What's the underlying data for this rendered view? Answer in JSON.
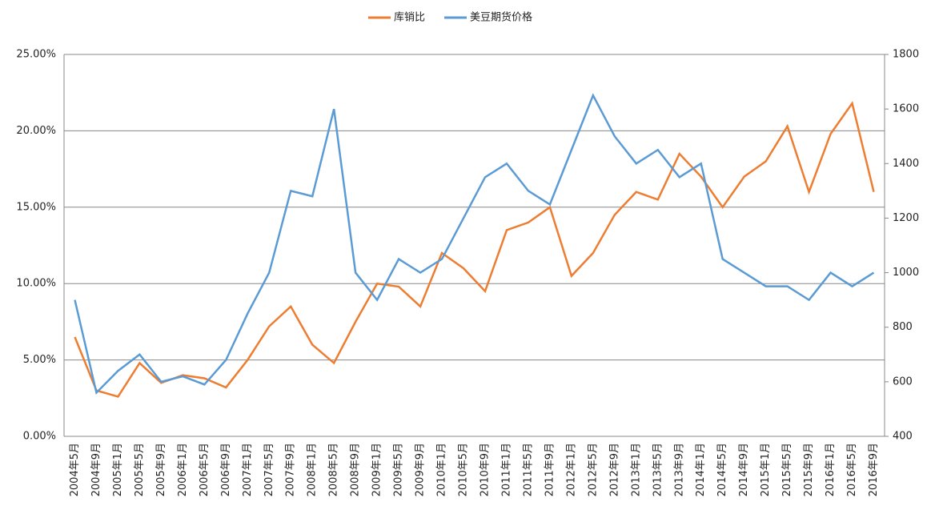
{
  "chart_data": {
    "type": "line",
    "categories": [
      "2004年5月",
      "2004年9月",
      "2005年1月",
      "2005年5月",
      "2005年9月",
      "2006年1月",
      "2006年5月",
      "2006年9月",
      "2007年1月",
      "2007年5月",
      "2007年9月",
      "2008年1月",
      "2008年5月",
      "2008年9月",
      "2009年1月",
      "2009年5月",
      "2009年9月",
      "2010年1月",
      "2010年5月",
      "2010年9月",
      "2011年1月",
      "2011年5月",
      "2011年9月",
      "2012年1月",
      "2012年5月",
      "2012年9月",
      "2013年1月",
      "2013年5月",
      "2013年9月",
      "2014年1月",
      "2014年5月",
      "2014年9月",
      "2015年1月",
      "2015年5月",
      "2015年9月",
      "2016年1月",
      "2016年5月",
      "2016年9月"
    ],
    "series": [
      {
        "name": "库销比",
        "color": "#ed7d31",
        "values": [
          6.5,
          3.0,
          2.6,
          4.8,
          3.5,
          4.0,
          3.8,
          3.2,
          5.0,
          7.2,
          8.5,
          6.0,
          4.8,
          7.5,
          10.0,
          9.8,
          8.5,
          12.0,
          11.0,
          9.5,
          13.5,
          14.0,
          15.0,
          10.5,
          12.0,
          14.5,
          16.0,
          15.5,
          18.5,
          17.0,
          15.0,
          17.0,
          18.0,
          20.3,
          16.0,
          19.8,
          21.8,
          16.0
        ]
      },
      {
        "name": "美豆期货价格",
        "color": "#5b9bd5",
        "axis": "y2",
        "values": [
          900,
          560,
          640,
          700,
          600,
          620,
          590,
          680,
          850,
          1000,
          1300,
          1280,
          1600,
          1000,
          900,
          1050,
          1000,
          1050,
          1200,
          1350,
          1400,
          1300,
          1250,
          1450,
          1650,
          1500,
          1400,
          1450,
          1350,
          1400,
          1050,
          1000,
          950,
          950,
          900,
          1000,
          950,
          1000
        ]
      }
    ],
    "ylim": [
      0,
      25
    ],
    "yticks": [
      {
        "value": 0,
        "label": "0.00%"
      },
      {
        "value": 5,
        "label": "5.00%"
      },
      {
        "value": 10,
        "label": "10.00%"
      },
      {
        "value": 15,
        "label": "15.00%"
      },
      {
        "value": 20,
        "label": "20.00%"
      },
      {
        "value": 25,
        "label": "25.00%"
      }
    ],
    "y2lim": [
      400,
      1800
    ],
    "y2ticks": [
      400,
      600,
      800,
      1000,
      1200,
      1400,
      1600,
      1800
    ],
    "grid": true
  }
}
